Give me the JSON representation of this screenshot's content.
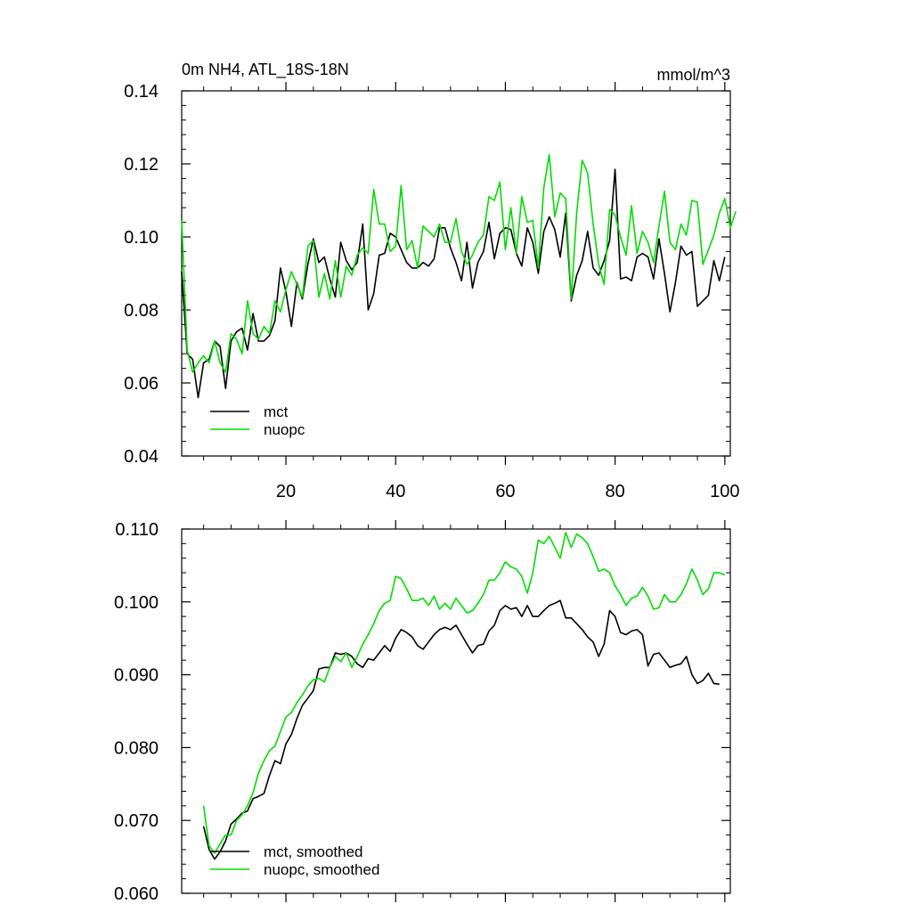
{
  "chart_data": [
    {
      "type": "line",
      "title": "0m NH4, ATL_18S-18N",
      "units": "mmol/m^3",
      "xlabel": "",
      "ylabel": "",
      "xlim": [
        1,
        101
      ],
      "ylim": [
        0.04,
        0.14
      ],
      "xticks": [
        20,
        40,
        60,
        80,
        100
      ],
      "xtick_labels": [
        "20",
        "40",
        "60",
        "80",
        "100"
      ],
      "yticks": [
        0.04,
        0.06,
        0.08,
        0.1,
        0.12,
        0.14
      ],
      "ytick_labels": [
        "0.04",
        "0.06",
        "0.08",
        "0.10",
        "0.12",
        "0.14"
      ],
      "grid": false,
      "legend_position": "bottom-left",
      "series": [
        {
          "name": "mct",
          "color": "#000000",
          "x_start": 1,
          "values": [
            0.0905,
            0.068,
            0.0665,
            0.056,
            0.0655,
            0.0665,
            0.0715,
            0.07,
            0.0585,
            0.0715,
            0.074,
            0.075,
            0.069,
            0.079,
            0.0715,
            0.0715,
            0.073,
            0.077,
            0.0915,
            0.085,
            0.0755,
            0.0875,
            0.083,
            0.0925,
            0.0995,
            0.093,
            0.0945,
            0.0885,
            0.0835,
            0.0985,
            0.0935,
            0.091,
            0.093,
            0.1035,
            0.08,
            0.0845,
            0.095,
            0.0955,
            0.101,
            0.1,
            0.0965,
            0.093,
            0.0915,
            0.0915,
            0.093,
            0.092,
            0.094,
            0.1025,
            0.1025,
            0.097,
            0.093,
            0.088,
            0.0985,
            0.086,
            0.093,
            0.096,
            0.104,
            0.094,
            0.101,
            0.1025,
            0.102,
            0.0955,
            0.092,
            0.1025,
            0.0985,
            0.09,
            0.1015,
            0.1055,
            0.102,
            0.0945,
            0.1065,
            0.0825,
            0.0895,
            0.0935,
            0.1015,
            0.0915,
            0.0895,
            0.0935,
            0.099,
            0.1185,
            0.0885,
            0.089,
            0.088,
            0.0945,
            0.0955,
            0.0945,
            0.0885,
            0.0995,
            0.09,
            0.0795,
            0.0875,
            0.0975,
            0.095,
            0.096,
            0.081,
            0.0825,
            0.084,
            0.0935,
            0.088,
            0.0945
          ]
        },
        {
          "name": "nuopc",
          "color": "#00dd00",
          "x_start": 1,
          "values": [
            0.1045,
            0.069,
            0.063,
            0.0655,
            0.0675,
            0.0655,
            0.0715,
            0.0655,
            0.063,
            0.0735,
            0.072,
            0.068,
            0.0825,
            0.0735,
            0.072,
            0.0755,
            0.0735,
            0.0825,
            0.0795,
            0.0855,
            0.0905,
            0.087,
            0.0835,
            0.0975,
            0.099,
            0.0835,
            0.09,
            0.083,
            0.0935,
            0.0835,
            0.092,
            0.0895,
            0.095,
            0.097,
            0.0955,
            0.113,
            0.1035,
            0.1035,
            0.096,
            0.0975,
            0.114,
            0.0965,
            0.099,
            0.0915,
            0.103,
            0.1015,
            0.1,
            0.1035,
            0.0985,
            0.0985,
            0.105,
            0.096,
            0.0925,
            0.095,
            0.0985,
            0.1005,
            0.111,
            0.11,
            0.115,
            0.0965,
            0.108,
            0.0955,
            0.111,
            0.104,
            0.1045,
            0.0915,
            0.1135,
            0.1225,
            0.1055,
            0.112,
            0.1105,
            0.083,
            0.1065,
            0.121,
            0.1175,
            0.1035,
            0.0925,
            0.087,
            0.1075,
            0.106,
            0.1,
            0.095,
            0.1085,
            0.0955,
            0.1015,
            0.0985,
            0.093,
            0.103,
            0.1125,
            0.0985,
            0.0965,
            0.1035,
            0.1005,
            0.11,
            0.1095,
            0.0925,
            0.0965,
            0.1005,
            0.1065,
            0.1105,
            0.1025,
            0.107
          ]
        }
      ]
    },
    {
      "type": "line",
      "title": "",
      "xlabel": "",
      "ylabel": "",
      "xlim": [
        1,
        101
      ],
      "ylim": [
        0.06,
        0.11
      ],
      "xticks": [
        20,
        40,
        60,
        80,
        100
      ],
      "yticks": [
        0.06,
        0.07,
        0.08,
        0.09,
        0.1,
        0.11
      ],
      "ytick_labels": [
        "0.060",
        "0.070",
        "0.080",
        "0.090",
        "0.100",
        "0.110"
      ],
      "grid": false,
      "legend_position": "bottom-left",
      "series": [
        {
          "name": "mct, smoothed",
          "color": "#000000",
          "x_start": 5,
          "values": [
            0.0692,
            0.066,
            0.0647,
            0.0657,
            0.0672,
            0.0695,
            0.0702,
            0.071,
            0.0713,
            0.073,
            0.0733,
            0.0737,
            0.0762,
            0.0782,
            0.0778,
            0.0805,
            0.0818,
            0.084,
            0.0858,
            0.0868,
            0.0878,
            0.0908,
            0.091,
            0.091,
            0.093,
            0.0928,
            0.093,
            0.0925,
            0.0915,
            0.091,
            0.0922,
            0.092,
            0.093,
            0.094,
            0.0932,
            0.095,
            0.0962,
            0.0958,
            0.0952,
            0.094,
            0.0935,
            0.0945,
            0.0955,
            0.0962,
            0.0965,
            0.0962,
            0.0968,
            0.0955,
            0.0942,
            0.093,
            0.094,
            0.0942,
            0.096,
            0.0968,
            0.0988,
            0.0995,
            0.099,
            0.0992,
            0.098,
            0.0995,
            0.098,
            0.098,
            0.0988,
            0.0995,
            0.0998,
            0.1002,
            0.0978,
            0.0978,
            0.097,
            0.0962,
            0.0952,
            0.0945,
            0.0925,
            0.0942,
            0.0988,
            0.098,
            0.0958,
            0.0955,
            0.096,
            0.0962,
            0.0955,
            0.0912,
            0.0928,
            0.093,
            0.092,
            0.091,
            0.0913,
            0.0915,
            0.0925,
            0.09,
            0.0888,
            0.0892,
            0.0902,
            0.0888,
            0.0887
          ]
        },
        {
          "name": "nuopc, smoothed",
          "color": "#00dd00",
          "x_start": 5,
          "values": [
            0.072,
            0.0665,
            0.0655,
            0.0668,
            0.068,
            0.068,
            0.07,
            0.0708,
            0.072,
            0.0738,
            0.0765,
            0.0782,
            0.0796,
            0.0802,
            0.0822,
            0.0842,
            0.0848,
            0.0862,
            0.0872,
            0.0885,
            0.0893,
            0.0895,
            0.089,
            0.091,
            0.0925,
            0.0918,
            0.093,
            0.091,
            0.0925,
            0.0942,
            0.0955,
            0.097,
            0.0988,
            0.0998,
            0.1002,
            0.1035,
            0.1032,
            0.1018,
            0.1002,
            0.1002,
            0.1005,
            0.0995,
            0.1008,
            0.099,
            0.0998,
            0.099,
            0.1005,
            0.0995,
            0.0985,
            0.0988,
            0.0998,
            0.101,
            0.103,
            0.103,
            0.104,
            0.1055,
            0.1048,
            0.1045,
            0.1035,
            0.1012,
            0.104,
            0.1085,
            0.108,
            0.109,
            0.1075,
            0.106,
            0.1095,
            0.1075,
            0.1093,
            0.1088,
            0.108,
            0.1062,
            0.1042,
            0.1045,
            0.104,
            0.1022,
            0.101,
            0.0995,
            0.1005,
            0.1008,
            0.102,
            0.1008,
            0.099,
            0.0992,
            0.101,
            0.1,
            0.1,
            0.101,
            0.1025,
            0.1045,
            0.103,
            0.101,
            0.1018,
            0.104,
            0.104,
            0.1037
          ]
        }
      ]
    }
  ]
}
